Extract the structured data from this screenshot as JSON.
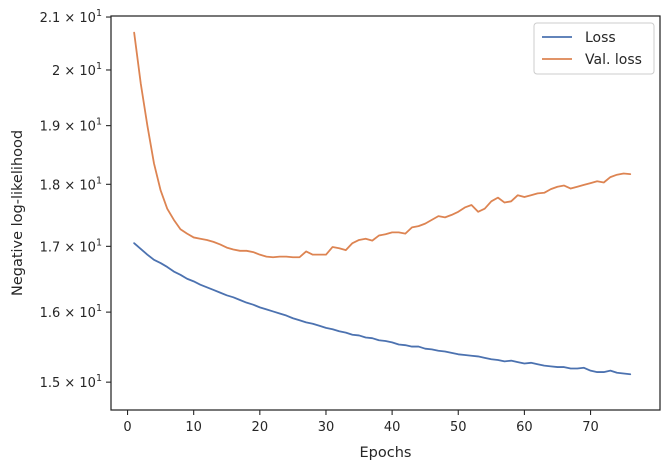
{
  "chart_data": {
    "type": "line",
    "xlabel": "Epochs",
    "ylabel": "Negative log-likelihood",
    "y_scale": "log",
    "xlim": [
      -2.5,
      80.5
    ],
    "ylim": [
      14.62,
      21.02
    ],
    "x_ticks": [
      0,
      10,
      20,
      30,
      40,
      50,
      60,
      70
    ],
    "y_ticks": [
      {
        "value": 15,
        "base": "1.5 × 10",
        "exp": "1"
      },
      {
        "value": 16,
        "base": "1.6 × 10",
        "exp": "1"
      },
      {
        "value": 17,
        "base": "1.7 × 10",
        "exp": "1"
      },
      {
        "value": 18,
        "base": "1.8 × 10",
        "exp": "1"
      },
      {
        "value": 19,
        "base": "1.9 × 10",
        "exp": "1"
      },
      {
        "value": 20,
        "base": "2 × 10",
        "exp": "1"
      },
      {
        "value": 21,
        "base": "2.1 × 10",
        "exp": "1"
      }
    ],
    "grid": false,
    "legend_position": "top-right",
    "series": [
      {
        "name": "Loss",
        "color": "#4c72b0",
        "x": [
          1,
          2,
          3,
          4,
          5,
          6,
          7,
          8,
          9,
          10,
          11,
          12,
          13,
          14,
          15,
          16,
          17,
          18,
          19,
          20,
          21,
          22,
          23,
          24,
          25,
          26,
          27,
          28,
          29,
          30,
          31,
          32,
          33,
          34,
          35,
          36,
          37,
          38,
          39,
          40,
          41,
          42,
          43,
          44,
          45,
          46,
          47,
          48,
          49,
          50,
          51,
          52,
          53,
          54,
          55,
          56,
          57,
          58,
          59,
          60,
          61,
          62,
          63,
          64,
          65,
          66,
          67,
          68,
          69,
          70,
          71,
          72,
          73,
          74,
          75,
          76
        ],
        "values": [
          17.05,
          16.96,
          16.87,
          16.79,
          16.74,
          16.68,
          16.61,
          16.56,
          16.5,
          16.46,
          16.41,
          16.37,
          16.33,
          16.29,
          16.25,
          16.22,
          16.18,
          16.14,
          16.11,
          16.07,
          16.04,
          16.01,
          15.98,
          15.95,
          15.91,
          15.88,
          15.85,
          15.83,
          15.8,
          15.77,
          15.75,
          15.72,
          15.7,
          15.67,
          15.66,
          15.63,
          15.62,
          15.59,
          15.58,
          15.56,
          15.53,
          15.52,
          15.5,
          15.5,
          15.47,
          15.46,
          15.44,
          15.43,
          15.41,
          15.39,
          15.38,
          15.37,
          15.36,
          15.34,
          15.32,
          15.31,
          15.29,
          15.3,
          15.28,
          15.26,
          15.27,
          15.25,
          15.23,
          15.22,
          15.21,
          15.21,
          15.19,
          15.19,
          15.2,
          15.16,
          15.14,
          15.14,
          15.16,
          15.13,
          15.12,
          15.11
        ]
      },
      {
        "name": "Val. loss",
        "color": "#dd8452",
        "x": [
          1,
          2,
          3,
          4,
          5,
          6,
          7,
          8,
          9,
          10,
          11,
          12,
          13,
          14,
          15,
          16,
          17,
          18,
          19,
          20,
          21,
          22,
          23,
          24,
          25,
          26,
          27,
          28,
          29,
          30,
          31,
          32,
          33,
          34,
          35,
          36,
          37,
          38,
          39,
          40,
          41,
          42,
          43,
          44,
          45,
          46,
          47,
          48,
          49,
          50,
          51,
          52,
          53,
          54,
          55,
          56,
          57,
          58,
          59,
          60,
          61,
          62,
          63,
          64,
          65,
          66,
          67,
          68,
          69,
          70,
          71,
          72,
          73,
          74,
          75,
          76
        ],
        "values": [
          20.7,
          19.75,
          19.0,
          18.35,
          17.9,
          17.6,
          17.42,
          17.27,
          17.2,
          17.14,
          17.12,
          17.1,
          17.07,
          17.03,
          16.98,
          16.95,
          16.93,
          16.93,
          16.91,
          16.87,
          16.84,
          16.83,
          16.84,
          16.84,
          16.83,
          16.83,
          16.92,
          16.87,
          16.87,
          16.87,
          16.99,
          16.97,
          16.94,
          17.05,
          17.1,
          17.12,
          17.09,
          17.17,
          17.19,
          17.22,
          17.22,
          17.2,
          17.3,
          17.32,
          17.36,
          17.42,
          17.48,
          17.46,
          17.5,
          17.55,
          17.62,
          17.66,
          17.55,
          17.6,
          17.72,
          17.78,
          17.7,
          17.72,
          17.82,
          17.79,
          17.82,
          17.85,
          17.86,
          17.92,
          17.96,
          17.98,
          17.93,
          17.96,
          17.99,
          18.02,
          18.05,
          18.03,
          18.12,
          18.16,
          18.18,
          18.17
        ]
      }
    ]
  }
}
